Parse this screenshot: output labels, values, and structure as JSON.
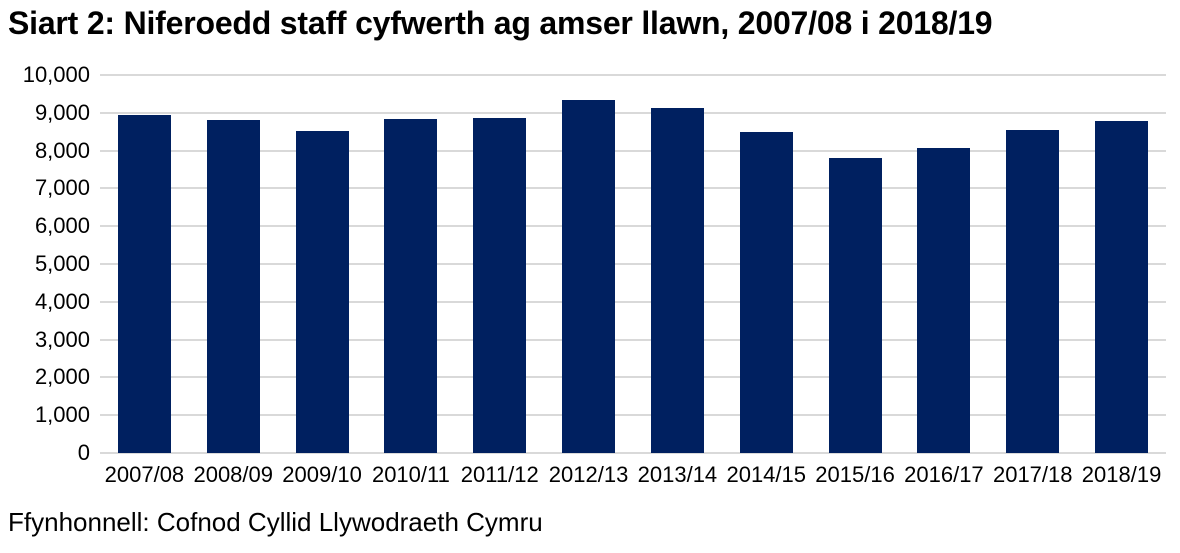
{
  "title": "Siart 2: Niferoedd staff cyfwerth ag amser llawn, 2007/08 i 2018/19",
  "source_note": "Ffynhonnell: Cofnod Cyllid Llywodraeth Cymru",
  "colors": {
    "bar": "#002060",
    "gridline": "#d9d9d9",
    "text": "#000000",
    "background": "#ffffff"
  },
  "chart_data": {
    "type": "bar",
    "title": "Siart 2: Niferoedd staff cyfwerth ag amser llawn, 2007/08 i 2018/19",
    "categories": [
      "2007/08",
      "2008/09",
      "2009/10",
      "2010/11",
      "2011/12",
      "2012/13",
      "2013/14",
      "2014/15",
      "2015/16",
      "2016/17",
      "2017/18",
      "2018/19"
    ],
    "values": [
      8950,
      8810,
      8530,
      8830,
      8860,
      9340,
      9140,
      8490,
      7810,
      8060,
      8540,
      8780
    ],
    "xlabel": "",
    "ylabel": "",
    "ylim": [
      0,
      10000
    ],
    "yticks": [
      0,
      1000,
      2000,
      3000,
      4000,
      5000,
      6000,
      7000,
      8000,
      9000,
      10000
    ],
    "ytick_labels": [
      "0",
      "1,000",
      "2,000",
      "3,000",
      "4,000",
      "5,000",
      "6,000",
      "7,000",
      "8,000",
      "9,000",
      "10,000"
    ],
    "grid": "horizontal",
    "legend": "none",
    "source": "Ffynhonnell: Cofnod Cyllid Llywodraeth Cymru"
  }
}
